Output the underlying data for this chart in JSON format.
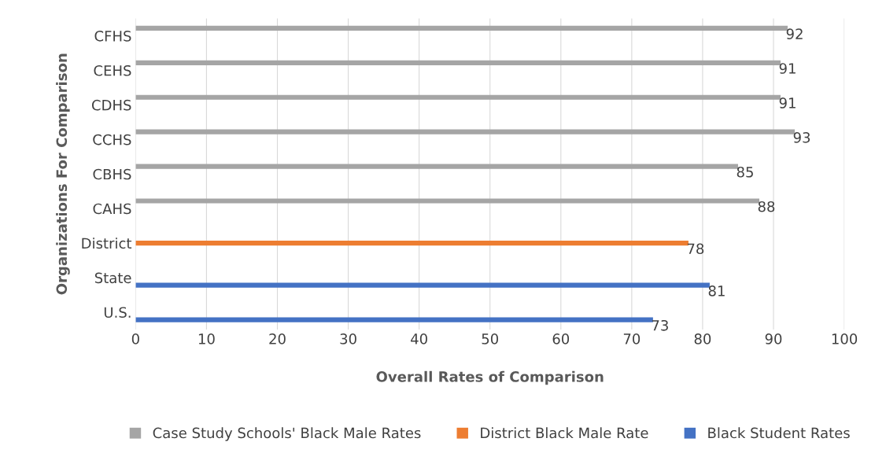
{
  "chart_data": {
    "type": "bar",
    "orientation": "horizontal",
    "xlabel": "Overall Rates of Comparison",
    "ylabel": "Organizations For Comparison",
    "categories": [
      "CFHS",
      "CEHS",
      "CDHS",
      "CCHS",
      "CBHS",
      "CAHS",
      "District",
      "State",
      "U.S."
    ],
    "series": [
      {
        "name": "Case Study Schools' Black Male Rates",
        "color": "#a5a5a5",
        "values": [
          92,
          91,
          91,
          93,
          85,
          88,
          null,
          null,
          null
        ],
        "value_labels": [
          "92",
          "91",
          "91",
          "93",
          "85",
          "88",
          null,
          null,
          null
        ]
      },
      {
        "name": "District Black Male Rate",
        "color": "#ed7d31",
        "values": [
          null,
          null,
          null,
          null,
          null,
          null,
          78,
          null,
          null
        ],
        "value_labels": [
          null,
          null,
          null,
          null,
          null,
          null,
          "78",
          null,
          null
        ]
      },
      {
        "name": "Black Student Rates",
        "color": "#4472c4",
        "values": [
          null,
          null,
          null,
          null,
          null,
          null,
          null,
          81,
          73
        ],
        "value_labels": [
          null,
          null,
          null,
          null,
          null,
          null,
          null,
          "81",
          "73"
        ]
      }
    ],
    "xlim": [
      0,
      100
    ],
    "xticks": [
      0,
      10,
      20,
      30,
      40,
      50,
      60,
      70,
      80,
      90,
      100
    ],
    "grid": "x",
    "legend": "bottom"
  }
}
